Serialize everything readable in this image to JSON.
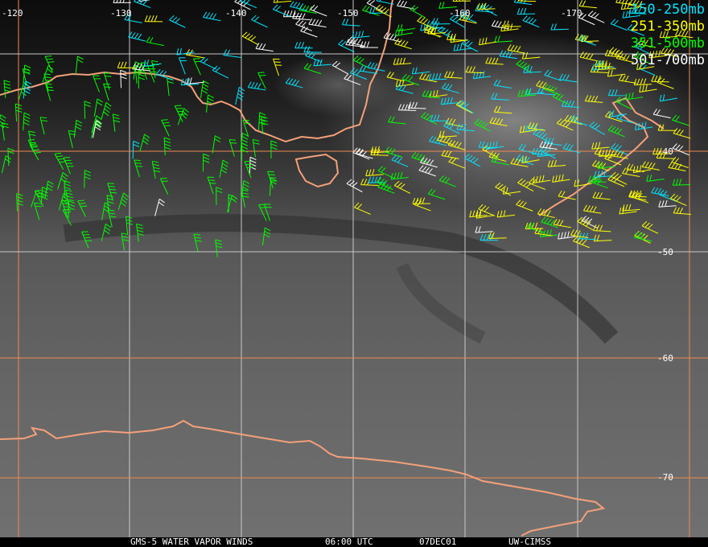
{
  "map": {
    "longitude_labels": [
      "-120",
      "-130",
      "-140",
      "-150",
      "-160",
      "-170"
    ],
    "latitude_labels": [
      "-40",
      "-50",
      "-60",
      "-70"
    ],
    "coastline_color": "#f4a07a",
    "grid_colors": {
      "orange": "#f08a50",
      "white": "#c8c8c8"
    }
  },
  "legend": [
    {
      "label": "150-250mb",
      "color": "#00e5ff"
    },
    {
      "label": "251-350mb",
      "color": "#ffff00"
    },
    {
      "label": "351-500mb",
      "color": "#00ff00"
    },
    {
      "label": "501-700mb",
      "color": "#ffffff"
    }
  ],
  "caption": {
    "product": "GMS-5 WATER VAPOR WINDS",
    "time": "06:00 UTC",
    "date": "07DEC01",
    "source": "UW-CIMSS"
  }
}
